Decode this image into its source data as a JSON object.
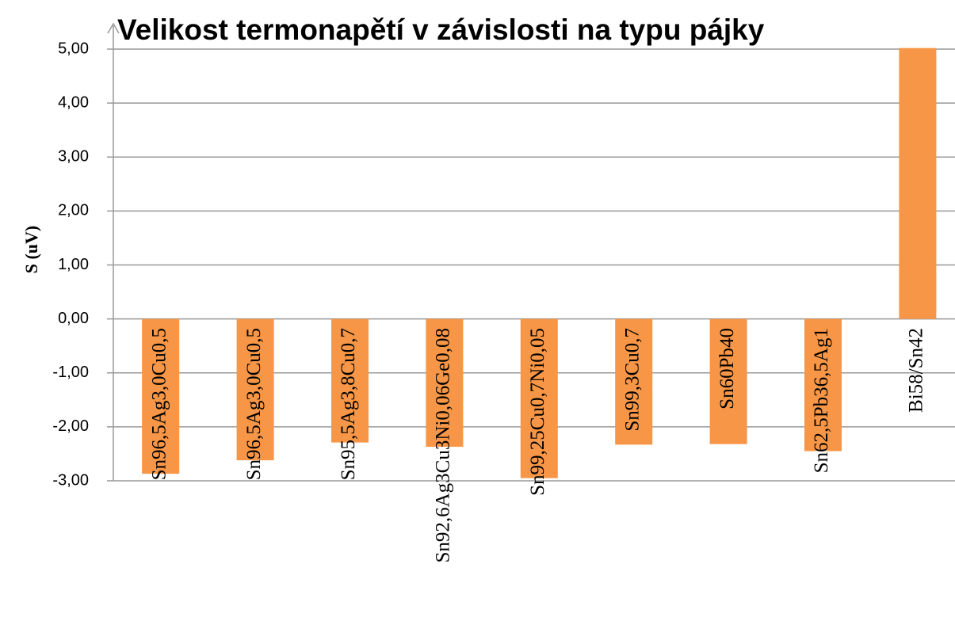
{
  "chart_data": {
    "type": "bar",
    "title": "Velikost termonapětí v závislosti na typu pájky",
    "y_label": "S (uV)",
    "categories": [
      "Sn96,5Ag3,0Cu0,5",
      "Sn96,5Ag3,0Cu0,5",
      "Sn95,5Ag3,8Cu0,7",
      "Sn92,6Ag3Cu3Ni0,06Ge0,08",
      "Sn99,25Cu0,7Ni0,05",
      "Sn99,3Cu0,7",
      "Sn60Pb40",
      "Sn62,5Pb36,5Ag1",
      "Bi58/Sn42"
    ],
    "values": [
      -2.87,
      -2.62,
      -2.29,
      -2.37,
      -2.95,
      -2.33,
      -2.32,
      -2.45,
      5.02
    ],
    "color": "#f79646",
    "ylim": [
      -3,
      5
    ],
    "yticks": [
      {
        "value": -3,
        "label": "-3,00"
      },
      {
        "value": -2,
        "label": "-2,00"
      },
      {
        "value": -1,
        "label": "-1,00"
      },
      {
        "value": 0,
        "label": "0,00"
      },
      {
        "value": 1,
        "label": "1,00"
      },
      {
        "value": 2,
        "label": "2,00"
      },
      {
        "value": 3,
        "label": "3,00"
      },
      {
        "value": 4,
        "label": "4,00"
      },
      {
        "value": 5,
        "label": "5,00"
      }
    ],
    "grid": true
  }
}
